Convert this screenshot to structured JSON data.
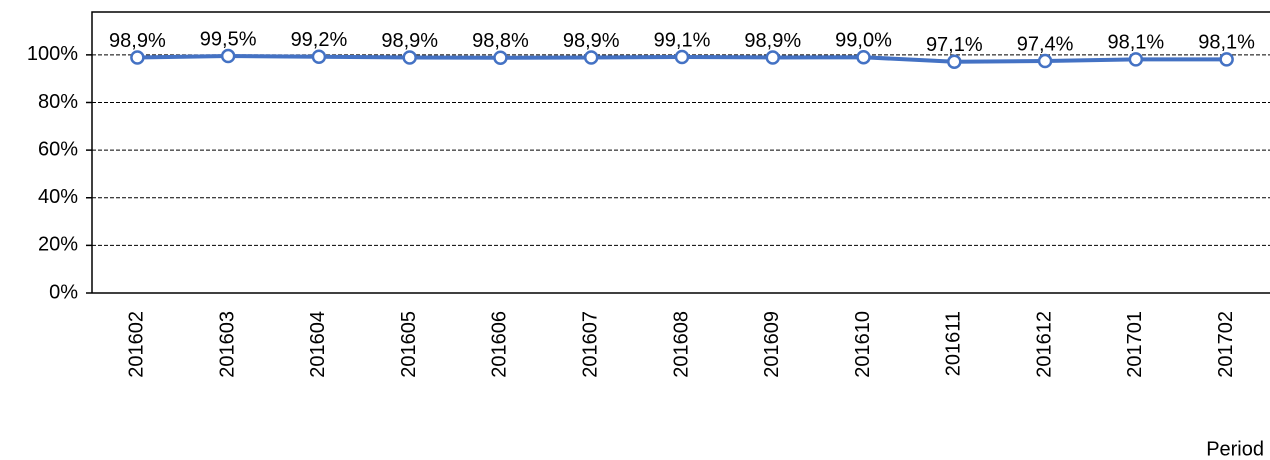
{
  "chart_data": {
    "type": "line",
    "x_label": "Period",
    "categories": [
      "201602",
      "201603",
      "201604",
      "201605",
      "201606",
      "201607",
      "201608",
      "201609",
      "201610",
      "201611",
      "201612",
      "201701",
      "201702"
    ],
    "series": [
      {
        "color": "#4472c4",
        "values": [
          98.9,
          99.5,
          99.2,
          98.9,
          98.8,
          98.9,
          99.1,
          98.9,
          99.0,
          97.1,
          97.4,
          98.1,
          98.1
        ],
        "value_labels": [
          "98,9%",
          "99,5%",
          "99,2%",
          "98,9%",
          "98,8%",
          "98,9%",
          "99,1%",
          "98,9%",
          "99,0%",
          "97,1%",
          "97,4%",
          "98,1%",
          "98,1%"
        ]
      }
    ],
    "ylim": [
      0,
      118
    ],
    "yticks": [
      {
        "value": 0,
        "label": "0%"
      },
      {
        "value": 20,
        "label": "20%"
      },
      {
        "value": 40,
        "label": "40%"
      },
      {
        "value": 60,
        "label": "60%"
      },
      {
        "value": 80,
        "label": "80%"
      },
      {
        "value": 100,
        "label": "100%"
      }
    ],
    "grid": true
  }
}
